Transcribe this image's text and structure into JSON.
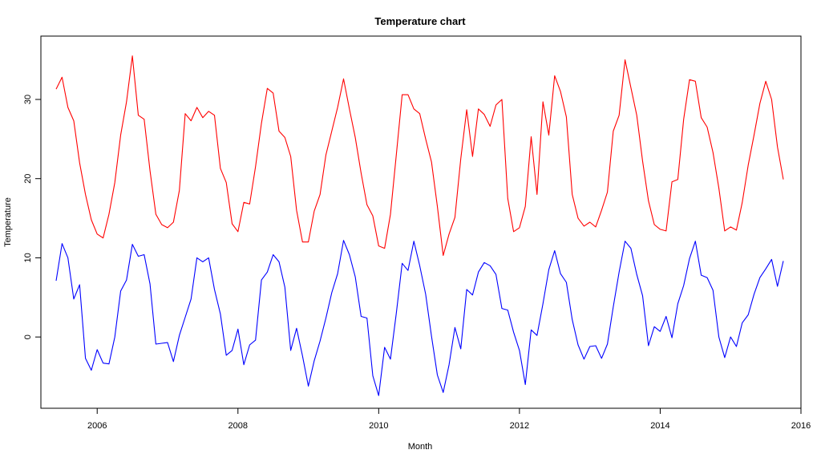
{
  "chart_data": {
    "type": "line",
    "title": "Temperature chart",
    "xlabel": "Month",
    "ylabel": "Temperature",
    "xlim": [
      2005.2,
      2016.0
    ],
    "ylim": [
      -9,
      38
    ],
    "x_ticks": [
      2006,
      2008,
      2010,
      2012,
      2014,
      2016
    ],
    "x_tick_labels": [
      "2006",
      "2008",
      "2010",
      "2012",
      "2014",
      "2016"
    ],
    "y_ticks": [
      0,
      10,
      20,
      30
    ],
    "y_tick_labels": [
      "0",
      "10",
      "20",
      "30"
    ],
    "x_start": 2005.417,
    "x_step": 0.08333,
    "grid": false,
    "legend": "none",
    "series": [
      {
        "color": "#ff0000",
        "values": [
          31.3,
          32.8,
          29.0,
          27.3,
          22.0,
          18.0,
          14.8,
          13.0,
          12.5,
          15.5,
          19.5,
          25.5,
          29.7,
          35.5,
          28.0,
          27.5,
          21.0,
          15.5,
          14.2,
          13.8,
          14.5,
          18.5,
          28.2,
          27.3,
          29.0,
          27.7,
          28.5,
          28.0,
          21.3,
          19.5,
          14.3,
          13.3,
          17.0,
          16.8,
          21.5,
          27.0,
          31.4,
          30.8,
          26.0,
          25.2,
          22.8,
          16.0,
          12.0,
          12.0,
          15.9,
          18.0,
          23.0,
          26.0,
          29.0,
          32.6,
          28.8,
          25.2,
          20.7,
          16.7,
          15.3,
          11.5,
          11.2,
          15.5,
          23.0,
          30.6,
          30.6,
          28.8,
          28.2,
          25.0,
          22.1,
          16.5,
          10.3,
          13.0,
          15.1,
          22.5,
          28.7,
          22.8,
          28.8,
          28.1,
          26.6,
          29.3,
          30.0,
          17.5,
          13.3,
          13.8,
          16.5,
          25.3,
          18.0,
          29.7,
          25.5,
          33.0,
          31.0,
          27.8,
          18.0,
          15.0,
          14.0,
          14.5,
          13.9,
          16.0,
          18.3,
          26.0,
          28.0,
          35.0,
          31.5,
          28.0,
          22.2,
          17.2,
          14.2,
          13.6,
          13.4,
          19.6,
          19.9,
          27.5,
          32.5,
          32.3,
          27.7,
          26.5,
          23.3,
          18.8,
          13.4,
          13.9,
          13.5,
          17.0,
          21.7,
          25.5,
          29.5,
          32.3,
          30.0,
          24.0,
          19.9
        ]
      },
      {
        "color": "#0000ff",
        "values": [
          7.1,
          11.8,
          10.0,
          4.8,
          6.6,
          -2.7,
          -4.2,
          -1.6,
          -3.3,
          -3.4,
          0.0,
          5.8,
          7.2,
          11.7,
          10.2,
          10.4,
          6.7,
          -0.9,
          -0.8,
          -0.7,
          -3.1,
          0.2,
          2.5,
          4.8,
          10.0,
          9.5,
          10.0,
          6.0,
          2.9,
          -2.3,
          -1.7,
          1.0,
          -3.5,
          -1.0,
          -0.4,
          7.2,
          8.2,
          10.4,
          9.5,
          6.3,
          -1.7,
          1.1,
          -2.4,
          -6.2,
          -3.0,
          -0.5,
          2.4,
          5.6,
          8.0,
          12.2,
          10.4,
          7.6,
          2.6,
          2.4,
          -4.9,
          -7.4,
          -1.3,
          -2.8,
          3.0,
          9.3,
          8.4,
          12.1,
          9.0,
          5.4,
          0.1,
          -4.8,
          -7.0,
          -3.5,
          1.2,
          -1.5,
          6.0,
          5.3,
          8.2,
          9.4,
          9.0,
          7.9,
          3.6,
          3.4,
          0.6,
          -1.7,
          -6.0,
          0.9,
          0.2,
          4.2,
          8.5,
          10.9,
          8.0,
          6.9,
          2.2,
          -1.0,
          -2.8,
          -1.2,
          -1.1,
          -2.7,
          -0.9,
          3.8,
          8.2,
          12.1,
          11.2,
          7.9,
          5.2,
          -1.1,
          1.3,
          0.7,
          2.6,
          -0.1,
          4.2,
          6.5,
          9.9,
          12.1,
          7.8,
          7.5,
          5.9,
          0.0,
          -2.6,
          0.0,
          -1.2,
          1.8,
          2.8,
          5.4,
          7.5,
          8.6,
          9.8,
          6.4,
          9.6
        ]
      }
    ]
  }
}
